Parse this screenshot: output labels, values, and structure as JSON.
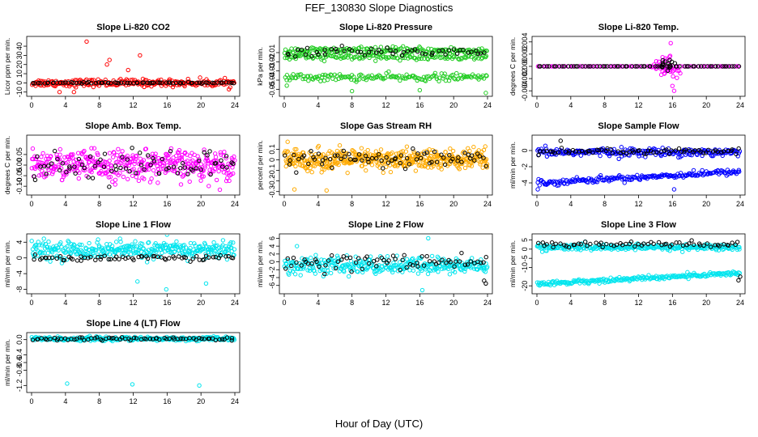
{
  "figure": {
    "title": "FEF_130830  Slope Diagnostics",
    "xlabel": "Hour of Day (UTC)"
  },
  "chart_data": [
    {
      "type": "scatter",
      "title": "Slope Li-820 CO2",
      "ylabel": "Licor ppm per min.",
      "xlim": [
        0,
        24
      ],
      "xticks": [
        0,
        4,
        8,
        12,
        16,
        20,
        24
      ],
      "xtick_labels": [
        "0",
        "4",
        "8",
        "12",
        "16",
        "20",
        "24"
      ],
      "ylim": [
        -12,
        48
      ],
      "yticks": [
        -10,
        0,
        10,
        20,
        30,
        40
      ],
      "ytick_labels": [
        "-10",
        "0",
        "10",
        "20",
        "30",
        "40"
      ],
      "series": [
        {
          "name": "all samples",
          "color": "#ff0000",
          "kind": "band",
          "center": 0,
          "spread": 4,
          "count": 240,
          "outliers": [
            [
              6.5,
              45
            ],
            [
              8.9,
              20
            ],
            [
              9.2,
              25
            ],
            [
              12.8,
              30
            ],
            [
              11.4,
              14
            ],
            [
              5.0,
              -10
            ],
            [
              3.3,
              -10
            ]
          ]
        },
        {
          "name": "selected",
          "color": "#000000",
          "kind": "band",
          "center": 0,
          "spread": 0.6,
          "count": 75
        }
      ]
    },
    {
      "type": "scatter",
      "title": "Slope Li-820 Pressure",
      "ylabel": "kPa per min.",
      "xlim": [
        0,
        24
      ],
      "xticks": [
        0,
        4,
        8,
        12,
        16,
        20,
        24
      ],
      "xtick_labels": [
        "0",
        "4",
        "8",
        "12",
        "16",
        "20",
        "24"
      ],
      "ylim": [
        -0.055,
        0.005
      ],
      "yticks": [
        -0.05,
        -0.04,
        -0.03,
        -0.02,
        -0.01
      ],
      "ytick_labels": [
        "-0.05",
        "-0.04",
        "-0.03",
        "-0.02",
        "-0.01"
      ],
      "series": [
        {
          "name": "upper band",
          "color": "#22cc22",
          "kind": "band",
          "center": -0.008,
          "spread": 0.004,
          "count": 180
        },
        {
          "name": "mid band",
          "color": "#22cc22",
          "kind": "band",
          "center": -0.015,
          "spread": 0.003,
          "count": 140
        },
        {
          "name": "lower band",
          "color": "#22cc22",
          "kind": "band",
          "center": -0.037,
          "spread": 0.004,
          "count": 160,
          "outliers": [
            [
              8.0,
              -0.052
            ],
            [
              16.0,
              -0.051
            ],
            [
              23.8,
              -0.054
            ],
            [
              0.3,
              -0.046
            ]
          ]
        },
        {
          "name": "selected",
          "color": "#000000",
          "kind": "band",
          "center": -0.009,
          "spread": 0.005,
          "count": 55
        }
      ]
    },
    {
      "type": "scatter",
      "title": "Slope Li-820 Temp.",
      "ylabel": "degrees C per min.",
      "xlim": [
        0,
        24
      ],
      "xticks": [
        0,
        4,
        8,
        12,
        16,
        20,
        24
      ],
      "xtick_labels": [
        "0",
        "4",
        "8",
        "12",
        "16",
        "20",
        "24"
      ],
      "ylim": [
        -0.0045,
        0.0045
      ],
      "yticks": [
        -0.004,
        -0.002,
        0.0,
        0.002,
        0.004
      ],
      "ytick_labels": [
        "-0.004",
        "-0.002",
        "0.000",
        "0.002",
        "0.004"
      ],
      "series": [
        {
          "name": "all samples",
          "color": "#ff00ff",
          "kind": "band",
          "center": 0,
          "spread": 0.0,
          "count": 80,
          "cluster": {
            "x0": 13.5,
            "x1": 17.0,
            "spread": 0.0012,
            "count": 45
          },
          "outliers": [
            [
              15.8,
              0.0038
            ],
            [
              16.2,
              -0.004
            ],
            [
              16.0,
              -0.0032
            ]
          ]
        },
        {
          "name": "selected",
          "color": "#000000",
          "kind": "band",
          "center": 0,
          "spread": 0.0,
          "count": 70,
          "cluster": {
            "x0": 14.5,
            "x1": 16.5,
            "spread": 0.0009,
            "count": 14
          }
        }
      ]
    },
    {
      "type": "scatter",
      "title": "Slope Amb. Box Temp.",
      "ylabel": "degrees C per min.",
      "xlim": [
        0,
        24
      ],
      "xticks": [
        0,
        4,
        8,
        12,
        16,
        20,
        24
      ],
      "xtick_labels": [
        "0",
        "4",
        "8",
        "12",
        "16",
        "20",
        "24"
      ],
      "ylim": [
        -0.13,
        0.13
      ],
      "yticks": [
        -0.1,
        -0.05,
        0.0,
        0.05
      ],
      "ytick_labels": [
        "-0.10",
        "-0.05",
        "0.00",
        "0.05"
      ],
      "series": [
        {
          "name": "all samples",
          "color": "#ff00ff",
          "kind": "band",
          "center": 0,
          "spread": 0.07,
          "count": 420
        },
        {
          "name": "selected",
          "color": "#000000",
          "kind": "band",
          "center": 0,
          "spread": 0.07,
          "count": 75
        }
      ]
    },
    {
      "type": "scatter",
      "title": "Slope Gas Stream RH",
      "ylabel": "percent per min.",
      "xlim": [
        0,
        24
      ],
      "xticks": [
        0,
        4,
        8,
        12,
        16,
        20,
        24
      ],
      "xtick_labels": [
        "0",
        "4",
        "8",
        "12",
        "16",
        "20",
        "24"
      ],
      "ylim": [
        -0.31,
        0.21
      ],
      "yticks": [
        -0.3,
        -0.2,
        -0.1,
        0.0,
        0.1
      ],
      "ytick_labels": [
        "-0.3",
        "-0.2",
        "-0.1",
        "0",
        "0.1"
      ],
      "series": [
        {
          "name": "all samples",
          "color": "#ffaa00",
          "kind": "band",
          "center": 0,
          "spread": 0.1,
          "count": 460,
          "outliers": [
            [
              1.2,
              -0.28
            ],
            [
              5.0,
              -0.29
            ],
            [
              0.4,
              0.17
            ]
          ]
        },
        {
          "name": "selected",
          "color": "#000000",
          "kind": "band",
          "center": 0,
          "spread": 0.08,
          "count": 75
        }
      ]
    },
    {
      "type": "scatter",
      "title": "Slope Sample Flow",
      "ylabel": "ml/min per min.",
      "xlim": [
        0,
        24
      ],
      "xticks": [
        0,
        4,
        8,
        12,
        16,
        20,
        24
      ],
      "xtick_labels": [
        "0",
        "4",
        "8",
        "12",
        "16",
        "20",
        "24"
      ],
      "ylim": [
        -5.2,
        1.6
      ],
      "yticks": [
        -4,
        -2,
        0
      ],
      "ytick_labels": [
        "-4",
        "-2",
        "0"
      ],
      "series": [
        {
          "name": "upper band",
          "color": "#0000ff",
          "kind": "band",
          "center": -0.2,
          "spread": 0.5,
          "count": 230
        },
        {
          "name": "lower band",
          "color": "#0000ff",
          "kind": "trend",
          "y0": -4.0,
          "y1": -2.6,
          "spread": 0.35,
          "count": 200,
          "outliers": [
            [
              0.1,
              -4.8
            ],
            [
              16.2,
              -4.8
            ]
          ]
        },
        {
          "name": "selected",
          "color": "#000000",
          "kind": "band",
          "center": -0.1,
          "spread": 0.45,
          "count": 70,
          "outliers": [
            [
              2.8,
              1.2
            ]
          ]
        }
      ]
    },
    {
      "type": "scatter",
      "title": "Slope Line 1 Flow",
      "ylabel": "ml/min per min.",
      "xlim": [
        0,
        24
      ],
      "xticks": [
        0,
        4,
        8,
        12,
        16,
        20,
        24
      ],
      "xtick_labels": [
        "0",
        "4",
        "8",
        "12",
        "16",
        "20",
        "24"
      ],
      "ylim": [
        -8.5,
        5.5
      ],
      "yticks": [
        -8,
        -4,
        0,
        4
      ],
      "ytick_labels": [
        "-8",
        "-4",
        "0",
        "4"
      ],
      "series": [
        {
          "name": "all samples",
          "color": "#00e5ee",
          "kind": "band",
          "center": 2,
          "spread": 2.2,
          "count": 340,
          "outliers": [
            [
              15.9,
              -8
            ],
            [
              12.5,
              -6
            ],
            [
              20.6,
              -6.5
            ]
          ]
        },
        {
          "name": "selected",
          "color": "#000000",
          "kind": "band",
          "center": 0,
          "spread": 0.8,
          "count": 70
        }
      ]
    },
    {
      "type": "scatter",
      "title": "Slope Line 2 Flow",
      "ylabel": "ml/min per min.",
      "xlim": [
        0,
        24
      ],
      "xticks": [
        0,
        4,
        8,
        12,
        16,
        20,
        24
      ],
      "xtick_labels": [
        "0",
        "4",
        "8",
        "12",
        "16",
        "20",
        "24"
      ],
      "ylim": [
        -7.5,
        6.5
      ],
      "yticks": [
        -6,
        -4,
        -2,
        0,
        2,
        4,
        6
      ],
      "ytick_labels": [
        "-6",
        "-4",
        "-2",
        "0",
        "2",
        "4",
        "6"
      ],
      "series": [
        {
          "name": "all samples",
          "color": "#00e5ee",
          "kind": "band",
          "center": -1,
          "spread": 2.2,
          "count": 320,
          "outliers": [
            [
              17.0,
              6
            ],
            [
              1.5,
              4
            ],
            [
              16.3,
              -7.2
            ]
          ]
        },
        {
          "name": "selected",
          "color": "#000000",
          "kind": "band",
          "center": 0,
          "spread": 2.0,
          "count": 70,
          "outliers": [
            [
              23.8,
              -5.5
            ],
            [
              23.6,
              -4.8
            ]
          ]
        }
      ]
    },
    {
      "type": "scatter",
      "title": "Slope Line 3 Flow",
      "ylabel": "ml/min per min.",
      "xlim": [
        0,
        24
      ],
      "xticks": [
        0,
        4,
        8,
        12,
        16,
        20,
        24
      ],
      "xtick_labels": [
        "0",
        "4",
        "8",
        "12",
        "16",
        "20",
        "24"
      ],
      "ylim": [
        -23,
        7
      ],
      "yticks": [
        -20,
        -10,
        -5,
        0,
        5
      ],
      "ytick_labels": [
        "-20",
        "-10",
        "-5",
        "0",
        "5"
      ],
      "series": [
        {
          "name": "upper band",
          "color": "#00e5ee",
          "kind": "band",
          "center": 1,
          "spread": 1.6,
          "count": 260
        },
        {
          "name": "lower band",
          "color": "#00e5ee",
          "kind": "trend",
          "y0": -19,
          "y1": -13,
          "spread": 1.2,
          "count": 230
        },
        {
          "name": "selected",
          "color": "#000000",
          "kind": "band",
          "center": 2.5,
          "spread": 2.0,
          "count": 65,
          "outliers": [
            [
              24.0,
              -15
            ],
            [
              23.8,
              -17
            ]
          ]
        }
      ]
    },
    {
      "type": "scatter",
      "title": "Slope Line 4 (LT) Flow",
      "ylabel": "ml/min per min.",
      "xlim": [
        0,
        24
      ],
      "xticks": [
        0,
        4,
        8,
        12,
        16,
        20,
        24
      ],
      "xtick_labels": [
        "0",
        "4",
        "8",
        "12",
        "16",
        "20",
        "24"
      ],
      "ylim": [
        -1.32,
        0.12
      ],
      "yticks": [
        -1.2,
        -0.8,
        -0.6,
        -0.4,
        0.0
      ],
      "ytick_labels": [
        "-1.2",
        "-0.8",
        "-0.6",
        "-0.4",
        "0.0"
      ],
      "series": [
        {
          "name": "all samples",
          "color": "#00e5ee",
          "kind": "band",
          "center": 0.02,
          "spread": 0.05,
          "count": 300,
          "outliers": [
            [
              4.2,
              -1.15
            ],
            [
              11.9,
              -1.17
            ],
            [
              19.8,
              -1.2
            ]
          ]
        },
        {
          "name": "selected",
          "color": "#000000",
          "kind": "band",
          "center": 0.02,
          "spread": 0.04,
          "count": 70
        }
      ]
    }
  ]
}
